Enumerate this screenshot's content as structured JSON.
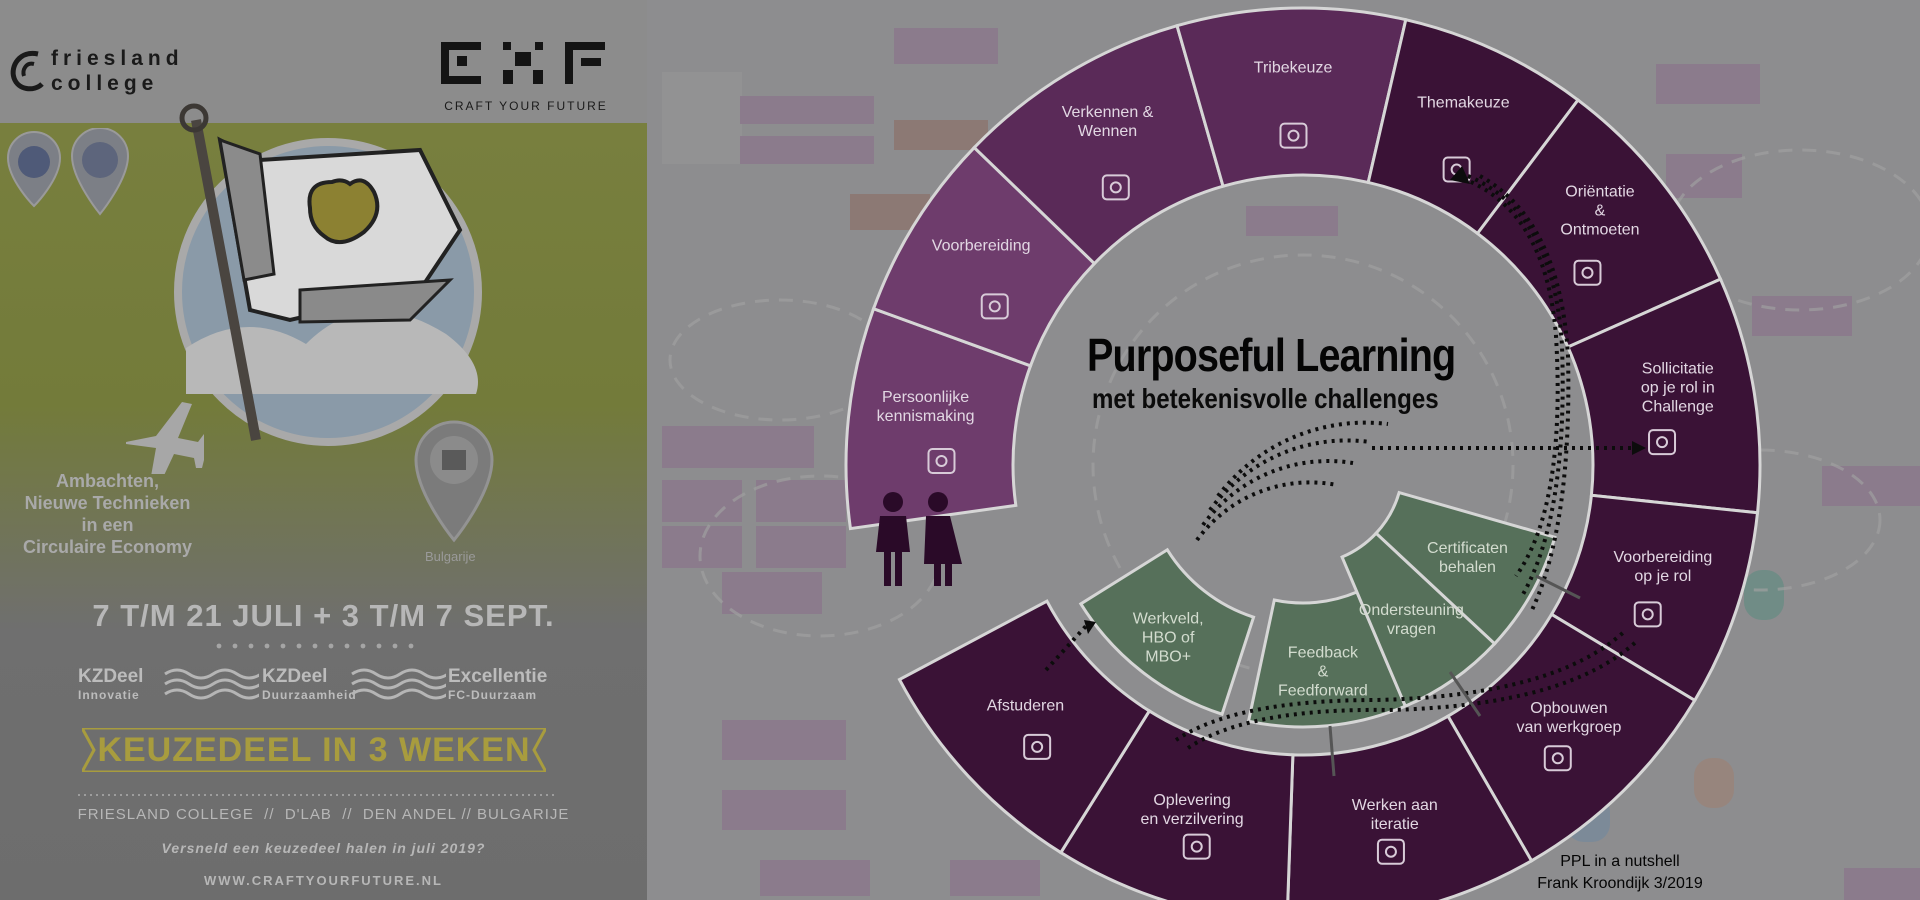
{
  "poster": {
    "brand_line1": "friesland",
    "brand_line2": "college",
    "cyf_tagline": "CRAFT YOUR FUTURE",
    "location_label": "Bulgarije",
    "caption_lines": [
      "Ambachten,",
      "Nieuwe Technieken",
      "in een",
      "Circulaire Economy"
    ],
    "dates": "7 T/M 21 JULI + 3 T/M 7 SEPT.",
    "tracks": [
      {
        "name": "KZDeel",
        "sub": "Innovatie"
      },
      {
        "name": "KZDeel",
        "sub": "Duurzaamheid"
      },
      {
        "name": "Excellentie",
        "sub": "FC-Duurzaam"
      }
    ],
    "banner": "KEUZEDEEL IN 3 WEKEN",
    "partners": "FRIESLAND COLLEGE  //  D'LAB  //  DEN ANDEL // BULGARIJE",
    "question": "Versneld een keuzedeel halen in juli 2019?",
    "url": "WWW.CRAFTYOURFUTURE.NL"
  },
  "diagram": {
    "title": "Purposeful Learning",
    "subtitle": "met betekenisvolle challenges",
    "credit_line1": "PPL in a nutshell",
    "credit_line2": "Frank Kroondijk 3/2019",
    "outer_segments": [
      {
        "label": "Persoonlijke\nkennismaking",
        "icon": "chat-icon"
      },
      {
        "label": "Voorbereiding",
        "icon": "brain-icon"
      },
      {
        "label": "Verkennen &\nWennen",
        "icon": "head-icon"
      },
      {
        "label": "Tribekeuze",
        "icon": "tribe-icon"
      },
      {
        "label": "Themakeuze",
        "icon": "signpost-icon"
      },
      {
        "label": "Oriëntatie\n&\nOntmoeten",
        "icon": "network-icon"
      },
      {
        "label": "Sollicitatie\nop je rol in\nChallenge",
        "icon": "resume-icon"
      },
      {
        "label": "Voorbereiding\nop je rol",
        "icon": "certificate-icon"
      },
      {
        "label": "Opbouwen\nvan werkgroep",
        "icon": "team-icon"
      },
      {
        "label": "Werken aan\niteratie",
        "icon": "cycle-icon"
      },
      {
        "label": "Oplevering\nen verzilvering",
        "icon": "presentation-icon"
      },
      {
        "label": "Afstuderen",
        "icon": "graduation-cap-icon"
      }
    ],
    "inner_segments": [
      {
        "label": "Werkveld,\nHBO of\nMBO+"
      },
      {
        "label": "Feedback\n&\nFeedforward"
      },
      {
        "label": "Ondersteuning\nvragen"
      },
      {
        "label": "Certificaten\nbehalen"
      }
    ]
  },
  "colors": {
    "purple_light": "#6e3c6c",
    "purple_mid": "#5a2a58",
    "purple_dark": "#3a1236",
    "green": "#56705a",
    "poster_olive": "#7a8140"
  }
}
